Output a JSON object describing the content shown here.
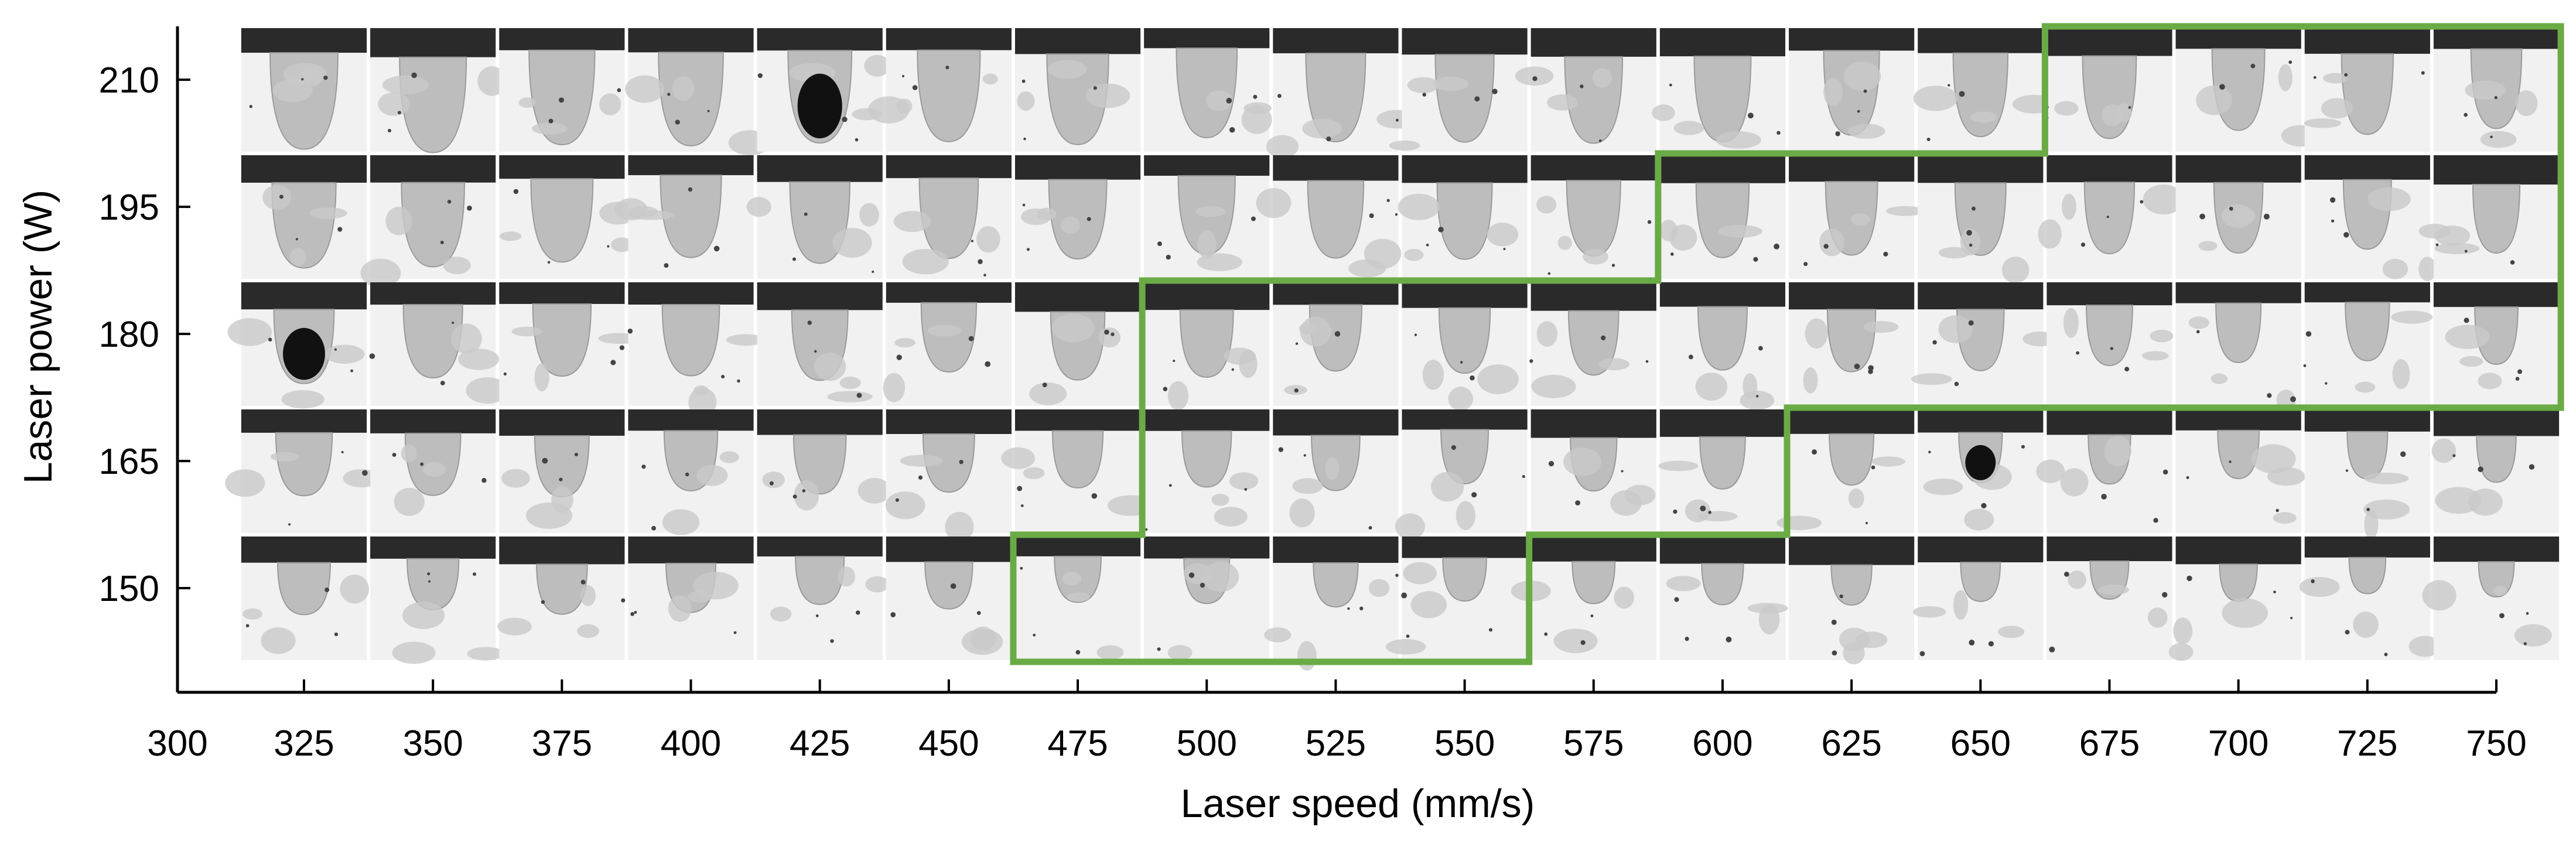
{
  "chart_data": {
    "type": "heatmap",
    "title": "",
    "xlabel": "Laser speed (mm/s)",
    "ylabel": "Laser power (W)",
    "x_tick_labels": [
      "300",
      "325",
      "350",
      "375",
      "400",
      "425",
      "450",
      "475",
      "500",
      "525",
      "550",
      "575",
      "600",
      "625",
      "650",
      "675",
      "700",
      "725",
      "750"
    ],
    "y_tick_labels": [
      "210",
      "195",
      "180",
      "165",
      "150"
    ],
    "x_values": [
      325,
      350,
      375,
      400,
      425,
      450,
      475,
      500,
      525,
      550,
      575,
      600,
      625,
      650,
      675,
      700,
      725,
      750
    ],
    "y_values": [
      210,
      195,
      180,
      165,
      150
    ],
    "xlim": [
      300,
      750
    ],
    "cell_content": "cross-section micrograph of melt pool",
    "highlight_region": {
      "color": "#6aab46",
      "boundary_description": "process window outlined in green",
      "included_cells_by_power": {
        "210": [
          675,
          750
        ],
        "195": [
          600,
          750
        ],
        "180": [
          500,
          750
        ],
        "165": [
          500,
          600
        ],
        "150": [
          475,
          550
        ]
      }
    }
  },
  "colors": {
    "axis": "#000000",
    "highlight": "#6aab46",
    "sample_dark": "#2a2a2a"
  }
}
